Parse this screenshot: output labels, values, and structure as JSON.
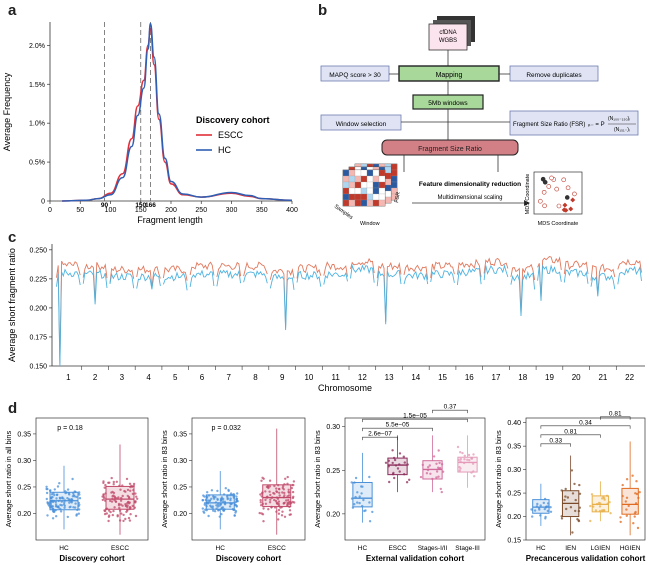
{
  "panels": {
    "a": "a",
    "b": "b",
    "c": "c",
    "d": "d"
  },
  "panel_a": {
    "ylabel": "Average Frequency",
    "xlabel": "Fragment length",
    "yticks": [
      "0",
      "0.5%",
      "1.0%",
      "1.5%",
      "2.0%"
    ],
    "xticks": [
      "0",
      "50",
      "100",
      "150",
      "200",
      "250",
      "300",
      "350",
      "400"
    ],
    "vline_labels": [
      "90",
      "150",
      "166"
    ],
    "legend_title": "Discovery cohort",
    "legend": [
      {
        "name": "ESCC",
        "color": "#e0303a"
      },
      {
        "name": "HC",
        "color": "#2f5fb3"
      }
    ]
  },
  "panel_b": {
    "input": "cfDNA\nWGBS",
    "mapping": "Mapping",
    "mapq": "MAPQ score > 30",
    "dedup": "Remove duplicates",
    "windows": "5Mb  windows",
    "window_selection": "Window selection",
    "fsr_formula": "Fragment Size Ratio (FSR)",
    "fsr": "Fragment Size Ratio",
    "feature_reduction": "Feature dimensionality reduction",
    "mds": "Multidimensional scaling",
    "samples": "Samples",
    "window": "Window",
    "fsr_short": "FSR",
    "mds_coord_x": "MDS Coordinate",
    "mds_coord_y": "MDS Coordinate"
  },
  "panel_c": {
    "ylabel": "Average short fragment ratio",
    "xlabel": "Chromosome",
    "yticks": [
      "0.150",
      "0.175",
      "0.200",
      "0.225",
      "0.250"
    ],
    "chromosomes": [
      "1",
      "2",
      "3",
      "4",
      "5",
      "6",
      "7",
      "8",
      "9",
      "10",
      "11",
      "12",
      "13",
      "14",
      "15",
      "16",
      "17",
      "18",
      "19",
      "20",
      "21",
      "22"
    ]
  },
  "panel_d": [
    {
      "ylabel": "Average short ratio in all bins",
      "xlabel": "Discovery cohort",
      "groups": [
        "HC",
        "ESCC"
      ],
      "pvalue": "p = 0.18",
      "yticks": [
        "0.20",
        "0.25",
        "0.30",
        "0.35"
      ]
    },
    {
      "ylabel": "Average short ratio in 83 bins",
      "xlabel": "Discovery cohort",
      "groups": [
        "HC",
        "ESCC"
      ],
      "pvalue": "p = 0.032",
      "yticks": [
        "0.20",
        "0.25",
        "0.30",
        "0.35"
      ]
    },
    {
      "ylabel": "Average short ratio in 83 bins",
      "xlabel": "External validation cohort",
      "groups": [
        "HC",
        "ESCC",
        "Stages-I/II",
        "Stage-III"
      ],
      "pvalues": [
        "2.6e−07",
        "5.5e−05",
        "1.5e−05",
        "0.37"
      ],
      "yticks": [
        "0.20",
        "0.25",
        "0.30"
      ]
    },
    {
      "ylabel": "Average short ratio in 83 bins",
      "xlabel": "Precancerous validation cohort",
      "groups": [
        "HC",
        "IEN",
        "LGIEN",
        "HGIEN"
      ],
      "pvalues": [
        "0.33",
        "0.81",
        "0.34",
        "0.81"
      ],
      "yticks": [
        "0.15",
        "0.20",
        "0.25",
        "0.30",
        "0.35",
        "0.40"
      ]
    }
  ],
  "chart_data": [
    {
      "type": "line",
      "title": "",
      "xlabel": "Fragment length",
      "ylabel": "Average Frequency",
      "xlim": [
        0,
        400
      ],
      "ylim": [
        0,
        2.3
      ],
      "y_unit": "%",
      "x": [
        20,
        60,
        80,
        100,
        120,
        135,
        145,
        155,
        162,
        166,
        172,
        180,
        190,
        200,
        220,
        250,
        300,
        330,
        350,
        400
      ],
      "series": [
        {
          "name": "ESCC",
          "color": "#e0303a",
          "values": [
            0,
            0.01,
            0.03,
            0.1,
            0.35,
            0.8,
            1.22,
            1.55,
            2.0,
            2.22,
            1.75,
            1.05,
            0.5,
            0.22,
            0.08,
            0.05,
            0.1,
            0.06,
            0.03,
            0.01
          ]
        },
        {
          "name": "HC",
          "color": "#2f5fb3",
          "values": [
            0,
            0.01,
            0.03,
            0.08,
            0.3,
            0.7,
            1.1,
            1.45,
            1.95,
            2.28,
            1.85,
            1.12,
            0.55,
            0.25,
            0.09,
            0.05,
            0.11,
            0.07,
            0.03,
            0.01
          ]
        }
      ],
      "vlines": [
        90,
        150,
        166
      ]
    },
    {
      "type": "line",
      "title": "",
      "xlabel": "Chromosome",
      "ylabel": "Average short fragment ratio",
      "ylim": [
        0.15,
        0.255
      ],
      "categories": [
        "1",
        "2",
        "3",
        "4",
        "5",
        "6",
        "7",
        "8",
        "9",
        "10",
        "11",
        "12",
        "13",
        "14",
        "15",
        "16",
        "17",
        "18",
        "19",
        "20",
        "21",
        "22"
      ],
      "series": [
        {
          "name": "",
          "color": "#e07a5f",
          "values": [
            0.237,
            0.236,
            0.233,
            0.233,
            0.233,
            0.236,
            0.236,
            0.236,
            0.232,
            0.234,
            0.236,
            0.24,
            0.236,
            0.235,
            0.236,
            0.238,
            0.24,
            0.234,
            0.241,
            0.237,
            0.234,
            0.24
          ]
        },
        {
          "name": "",
          "color": "#4fb3e0",
          "values": [
            0.23,
            0.229,
            0.227,
            0.227,
            0.227,
            0.229,
            0.229,
            0.229,
            0.226,
            0.228,
            0.229,
            0.233,
            0.229,
            0.228,
            0.229,
            0.231,
            0.233,
            0.227,
            0.233,
            0.23,
            0.227,
            0.232
          ]
        }
      ],
      "dips": [
        [
          1,
          0.152
        ],
        [
          2,
          0.205
        ],
        [
          4,
          0.218
        ],
        [
          9,
          0.183
        ],
        [
          13,
          0.188
        ],
        [
          18,
          0.195
        ],
        [
          19,
          0.208
        ],
        [
          21,
          0.212
        ]
      ]
    },
    {
      "type": "box",
      "groups": [
        "HC",
        "ESCC"
      ],
      "values": [
        {
          "q1": 0.207,
          "median": 0.224,
          "q3": 0.24,
          "min": 0.17,
          "max": 0.29
        },
        {
          "q1": 0.208,
          "median": 0.227,
          "q3": 0.251,
          "min": 0.16,
          "max": 0.33
        }
      ]
    },
    {
      "type": "box",
      "groups": [
        "HC",
        "ESCC"
      ],
      "values": [
        {
          "q1": 0.208,
          "median": 0.22,
          "q3": 0.235,
          "min": 0.17,
          "max": 0.28
        },
        {
          "q1": 0.213,
          "median": 0.23,
          "q3": 0.254,
          "min": 0.16,
          "max": 0.36
        }
      ]
    },
    {
      "type": "box",
      "groups": [
        "HC",
        "ESCC",
        "Stages-I/II",
        "Stage-III"
      ],
      "values": [
        {
          "q1": 0.208,
          "median": 0.218,
          "q3": 0.236,
          "min": 0.19,
          "max": 0.27
        },
        {
          "q1": 0.245,
          "median": 0.256,
          "q3": 0.264,
          "min": 0.225,
          "max": 0.29
        },
        {
          "q1": 0.24,
          "median": 0.251,
          "q3": 0.261,
          "min": 0.225,
          "max": 0.29
        },
        {
          "q1": 0.248,
          "median": 0.259,
          "q3": 0.265,
          "min": 0.23,
          "max": 0.29
        }
      ]
    },
    {
      "type": "box",
      "groups": [
        "HC",
        "IEN",
        "LGIEN",
        "HGIEN"
      ],
      "values": [
        {
          "q1": 0.207,
          "median": 0.22,
          "q3": 0.236,
          "min": 0.18,
          "max": 0.27
        },
        {
          "q1": 0.2,
          "median": 0.228,
          "q3": 0.255,
          "min": 0.16,
          "max": 0.33
        },
        {
          "q1": 0.21,
          "median": 0.226,
          "q3": 0.244,
          "min": 0.19,
          "max": 0.275
        },
        {
          "q1": 0.205,
          "median": 0.226,
          "q3": 0.26,
          "min": 0.16,
          "max": 0.36
        }
      ]
    }
  ]
}
